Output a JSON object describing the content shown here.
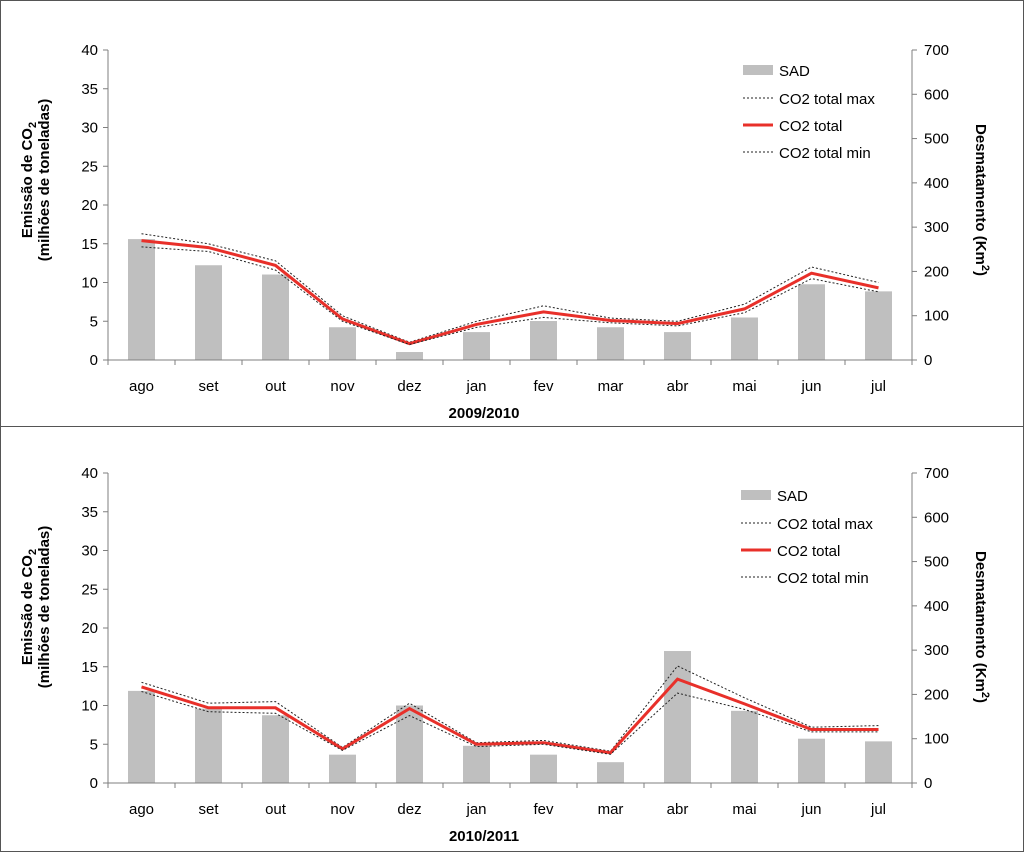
{
  "charts": [
    {
      "ylabel_left_1": "Emissão de CO",
      "ylabel_left_sub": "2",
      "ylabel_left_2": "(milhões de toneladas)",
      "ylabel_right": "Desmatamento (Km",
      "ylabel_right_sup": "2",
      "ylabel_right_end": ")",
      "xlabel": "2009/2010",
      "legend": [
        "SAD",
        "CO2 total max",
        "CO2 total",
        "CO2 total min"
      ]
    },
    {
      "ylabel_left_1": "Emissão de CO",
      "ylabel_left_sub": "2",
      "ylabel_left_2": "(milhões de toneladas)",
      "ylabel_right": "Desmatamento (Km",
      "ylabel_right_sup": "2",
      "ylabel_right_end": ")",
      "xlabel": "2010/2011",
      "legend": [
        "SAD",
        "CO2 total max",
        "CO2 total",
        "CO2 total min"
      ]
    }
  ],
  "colors": {
    "bar": "#bfbfbf",
    "total": "#e8302a",
    "minmax": "#222222",
    "axis": "#7f7f7f"
  },
  "chart_data": [
    {
      "type": "bar",
      "categories": [
        "ago",
        "set",
        "out",
        "nov",
        "dez",
        "jan",
        "fev",
        "mar",
        "abr",
        "mai",
        "jun",
        "jul"
      ],
      "xlabel": "2009/2010",
      "ylabel": "Emissão de CO2 (milhões de toneladas)",
      "y2label": "Desmatamento (Km2)",
      "ylim": [
        0,
        40
      ],
      "y2lim": [
        0,
        700
      ],
      "yticks": [
        0,
        5,
        10,
        15,
        20,
        25,
        30,
        35,
        40
      ],
      "y2ticks": [
        0,
        100,
        200,
        300,
        400,
        500,
        600,
        700
      ],
      "legend_position": "top-right",
      "series": [
        {
          "name": "SAD",
          "type": "bar",
          "axis": "right",
          "values": [
            273,
            214,
            193,
            74,
            18,
            63,
            88,
            74,
            63,
            96,
            171,
            155
          ]
        },
        {
          "name": "CO2 total max",
          "type": "line",
          "axis": "left",
          "style": "dotted",
          "values": [
            16.3,
            15.0,
            12.8,
            5.7,
            2.3,
            5.0,
            7.0,
            5.4,
            5.0,
            7.2,
            12.0,
            10.0
          ]
        },
        {
          "name": "CO2 total",
          "type": "line",
          "axis": "left",
          "style": "solid",
          "values": [
            15.4,
            14.5,
            12.2,
            5.3,
            2.1,
            4.6,
            6.2,
            5.1,
            4.7,
            6.6,
            11.2,
            9.3
          ]
        },
        {
          "name": "CO2 total min",
          "type": "line",
          "axis": "left",
          "style": "dotted",
          "values": [
            14.6,
            14.0,
            11.6,
            5.0,
            2.0,
            4.2,
            5.5,
            4.8,
            4.4,
            6.1,
            10.5,
            8.8
          ]
        }
      ]
    },
    {
      "type": "bar",
      "categories": [
        "ago",
        "set",
        "out",
        "nov",
        "dez",
        "jan",
        "fev",
        "mar",
        "abr",
        "mai",
        "jun",
        "jul"
      ],
      "xlabel": "2010/2011",
      "ylabel": "Emissão de CO2 (milhões de toneladas)",
      "y2label": "Desmatamento (Km2)",
      "ylim": [
        0,
        40
      ],
      "y2lim": [
        0,
        700
      ],
      "yticks": [
        0,
        5,
        10,
        15,
        20,
        25,
        30,
        35,
        40
      ],
      "y2ticks": [
        0,
        100,
        200,
        300,
        400,
        500,
        600,
        700
      ],
      "legend_position": "top-right",
      "series": [
        {
          "name": "SAD",
          "type": "bar",
          "axis": "right",
          "values": [
            208,
            168,
            153,
            64,
            175,
            84,
            64,
            47,
            298,
            163,
            100,
            94
          ]
        },
        {
          "name": "CO2 total max",
          "type": "line",
          "axis": "left",
          "style": "dotted",
          "values": [
            13.0,
            10.3,
            10.5,
            4.6,
            10.3,
            5.2,
            5.5,
            4.1,
            15.1,
            11.0,
            7.2,
            7.4
          ]
        },
        {
          "name": "CO2 total",
          "type": "line",
          "axis": "left",
          "style": "solid",
          "values": [
            12.4,
            9.7,
            9.7,
            4.4,
            9.6,
            5.0,
            5.2,
            3.9,
            13.4,
            10.2,
            6.9,
            6.9
          ]
        },
        {
          "name": "CO2 total min",
          "type": "line",
          "axis": "left",
          "style": "dotted",
          "values": [
            11.8,
            9.2,
            9.0,
            4.2,
            8.7,
            4.7,
            5.0,
            3.7,
            11.6,
            9.5,
            6.6,
            6.6
          ]
        }
      ]
    }
  ]
}
